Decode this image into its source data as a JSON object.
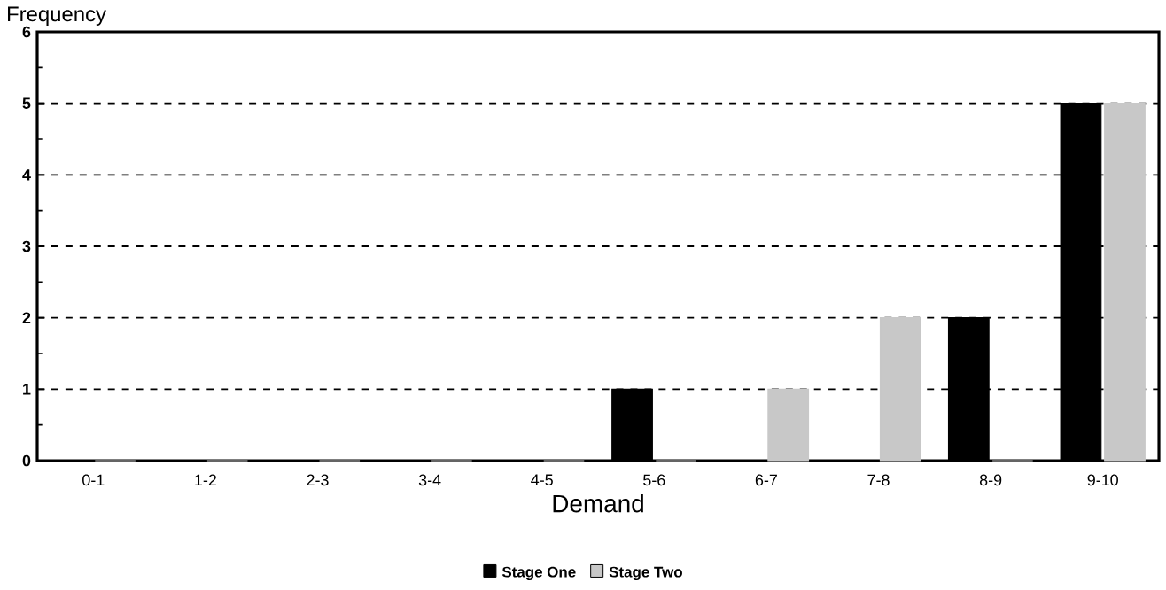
{
  "chart_data": {
    "type": "bar",
    "xlabel": "Demand",
    "ylabel": "Frequency",
    "categories": [
      "0-1",
      "1-2",
      "2-3",
      "3-4",
      "4-5",
      "5-6",
      "6-7",
      "7-8",
      "8-9",
      "9-10"
    ],
    "series": [
      {
        "name": "Stage One",
        "color": "#000000",
        "values": [
          0,
          0,
          0,
          0,
          0,
          1,
          0,
          0,
          2,
          5
        ]
      },
      {
        "name": "Stage Two",
        "color": "#c8c8c8",
        "values": [
          0,
          0,
          0,
          0,
          0,
          0,
          1,
          2,
          0,
          5
        ]
      }
    ],
    "ylim": [
      0,
      6
    ],
    "yticks": [
      0,
      1,
      2,
      3,
      4,
      5,
      6
    ],
    "grid": "y",
    "legend": "bottom"
  }
}
